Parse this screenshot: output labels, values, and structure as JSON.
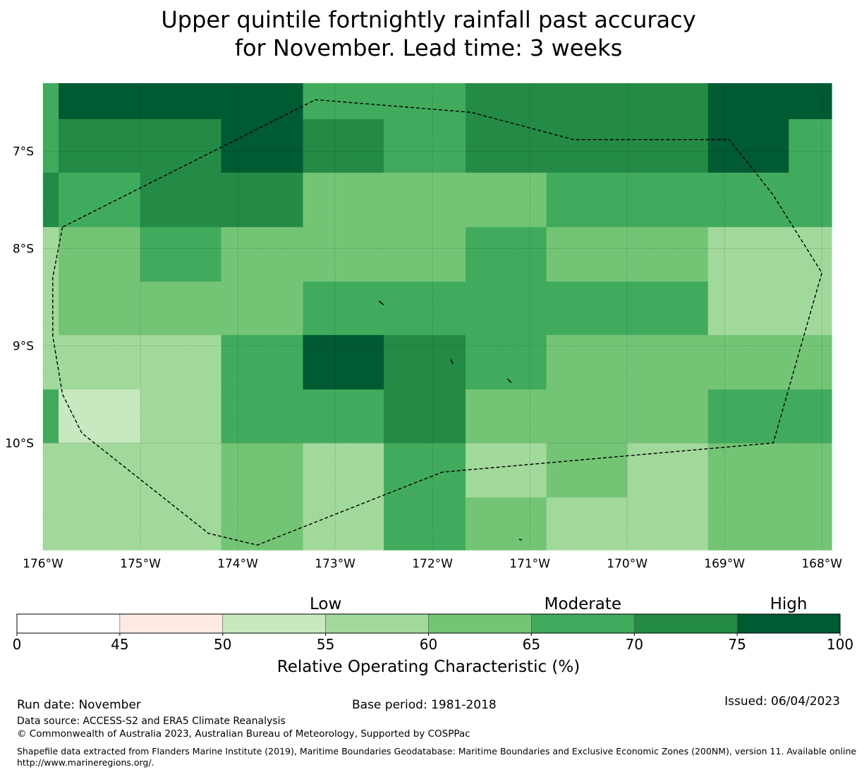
{
  "title": {
    "line1": "Upper quintile fortnightly rainfall past accuracy",
    "line2": "for November. Lead time: 3 weeks"
  },
  "map": {
    "lon_range": [
      -176,
      -167.9
    ],
    "lat_range": [
      -11.1,
      -6.3
    ],
    "lon_ticks": [
      {
        "value": -176,
        "label": "176°W"
      },
      {
        "value": -175,
        "label": "175°W"
      },
      {
        "value": -174,
        "label": "174°W"
      },
      {
        "value": -173,
        "label": "173°W"
      },
      {
        "value": -172,
        "label": "172°W"
      },
      {
        "value": -171,
        "label": "171°W"
      },
      {
        "value": -170,
        "label": "170°W"
      },
      {
        "value": -169,
        "label": "169°W"
      },
      {
        "value": -168,
        "label": "168°W"
      }
    ],
    "lat_ticks": [
      {
        "value": -7,
        "label": "7°S"
      },
      {
        "value": -8,
        "label": "8°S"
      },
      {
        "value": -9,
        "label": "9°S"
      },
      {
        "value": -10,
        "label": "10°S"
      }
    ],
    "lon_edges": [
      -176,
      -175.84,
      -175,
      -174.17,
      -173.33,
      -172.5,
      -171.66,
      -170.83,
      -170,
      -169.17,
      -168.34,
      -167.9
    ],
    "lat_edges": [
      -6.3,
      -6.67,
      -7.22,
      -7.78,
      -8.34,
      -8.89,
      -9.45,
      -10.0,
      -10.56,
      -11.1
    ],
    "rows_roc_class": [
      [
        5,
        7,
        7,
        7,
        5,
        5,
        6,
        6,
        6,
        7,
        7
      ],
      [
        5,
        6,
        6,
        7,
        6,
        5,
        6,
        6,
        6,
        7,
        5
      ],
      [
        6,
        5,
        6,
        6,
        4,
        4,
        4,
        5,
        5,
        5,
        5
      ],
      [
        3,
        4,
        5,
        4,
        4,
        4,
        5,
        4,
        4,
        3,
        3
      ],
      [
        3,
        4,
        4,
        4,
        5,
        5,
        5,
        5,
        5,
        3,
        3
      ],
      [
        3,
        3,
        3,
        5,
        7,
        6,
        5,
        4,
        4,
        4,
        4
      ],
      [
        5,
        2,
        3,
        5,
        5,
        6,
        4,
        4,
        4,
        5,
        5
      ],
      [
        3,
        3,
        3,
        4,
        3,
        5,
        3,
        4,
        3,
        4,
        4
      ],
      [
        3,
        3,
        3,
        4,
        3,
        5,
        4,
        3,
        3,
        4,
        4
      ]
    ],
    "eez_boundary": [
      [
        -175.8,
        -7.78
      ],
      [
        -175.9,
        -8.3
      ],
      [
        -175.9,
        -8.9
      ],
      [
        -175.8,
        -9.5
      ],
      [
        -175.6,
        -9.9
      ],
      [
        -174.3,
        -10.93
      ],
      [
        -173.8,
        -11.05
      ],
      [
        -171.9,
        -10.3
      ],
      [
        -168.5,
        -10.0
      ],
      [
        -168.0,
        -8.25
      ],
      [
        -168.5,
        -7.45
      ],
      [
        -168.95,
        -6.88
      ],
      [
        -170.55,
        -6.88
      ],
      [
        -171.6,
        -6.6
      ],
      [
        -173.2,
        -6.47
      ],
      [
        -175.8,
        -7.78
      ]
    ],
    "islands": [
      [
        [
          -172.55,
          -8.54
        ],
        [
          -172.5,
          -8.58
        ]
      ],
      [
        [
          -171.81,
          -9.14
        ],
        [
          -171.79,
          -9.19
        ]
      ],
      [
        [
          -171.23,
          -9.34
        ],
        [
          -171.19,
          -9.38
        ]
      ],
      [
        [
          -171.11,
          -10.99
        ],
        [
          -171.08,
          -11.0
        ]
      ]
    ]
  },
  "colorbar": {
    "bounds": [
      0,
      45,
      50,
      55,
      60,
      65,
      70,
      75,
      100
    ],
    "tick_labels": [
      "0",
      "45",
      "50",
      "55",
      "60",
      "65",
      "70",
      "75",
      "100"
    ],
    "colors": [
      "#ffffff",
      "#feeae3",
      "#c7e9c0",
      "#a1d99b",
      "#74c476",
      "#41ab5d",
      "#238b45",
      "#005a32"
    ],
    "categories": [
      {
        "label": "Low",
        "value": 55
      },
      {
        "label": "Moderate",
        "value": 67.5
      },
      {
        "label": "High",
        "value": 87.5
      }
    ],
    "label": "Relative Operating Characteristic (%)"
  },
  "footer": {
    "run_date": "Run date: November",
    "base_period": "Base period: 1981-2018",
    "issued": "Issued: 06/04/2023",
    "data_source": "Data source: ACCESS-S2 and ERA5 Climate Reanalysis",
    "copyright": "© Commonwealth of Australia 2023, Australian Bureau of Meteorology, Supported by COSPPac",
    "shapefile_line1": "Shapefile data extracted from Flanders Marine Institute (2019), Maritime Boundaries Geodatabase: Maritime Boundaries and Exclusive Economic Zones (200NM), version 11. Available online at",
    "shapefile_line2": "http://www.marineregions.org/."
  }
}
